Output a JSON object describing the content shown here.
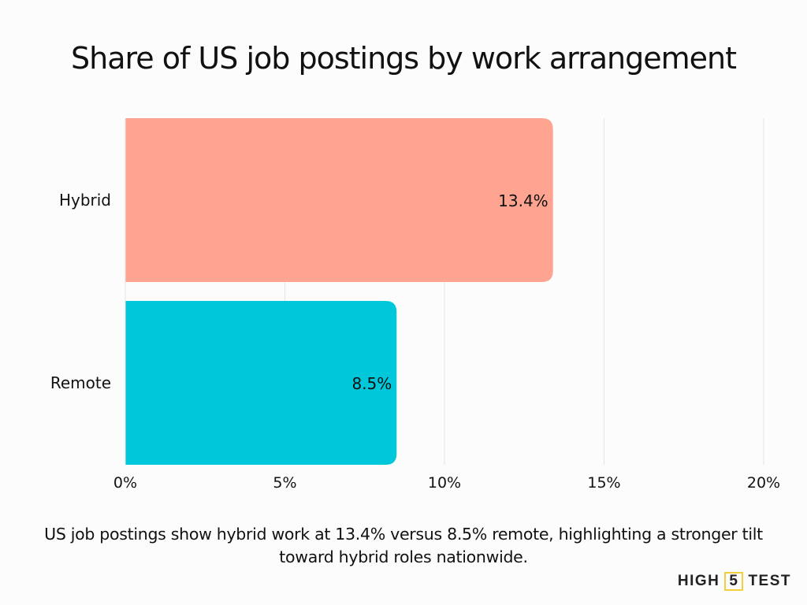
{
  "chart_data": {
    "type": "bar",
    "orientation": "horizontal",
    "title": "Share of US job postings by work arrangement",
    "categories": [
      "Hybrid",
      "Remote"
    ],
    "values": [
      13.4,
      8.5
    ],
    "data_labels": [
      "13.4%",
      "8.5%"
    ],
    "colors": [
      "#FFA490",
      "#00C8DA"
    ],
    "xlim": [
      0,
      20
    ],
    "xticks": [
      0,
      5,
      10,
      15,
      20
    ],
    "xtick_labels": [
      "0%",
      "5%",
      "10%",
      "15%",
      "20%"
    ],
    "xlabel": "",
    "ylabel": "",
    "grid": true
  },
  "caption": "US job postings show hybrid work at 13.4% versus 8.5% remote, highlighting a stronger tilt toward hybrid roles nationwide.",
  "logo": {
    "left": "HIGH",
    "mid": "5",
    "right": "TEST"
  }
}
